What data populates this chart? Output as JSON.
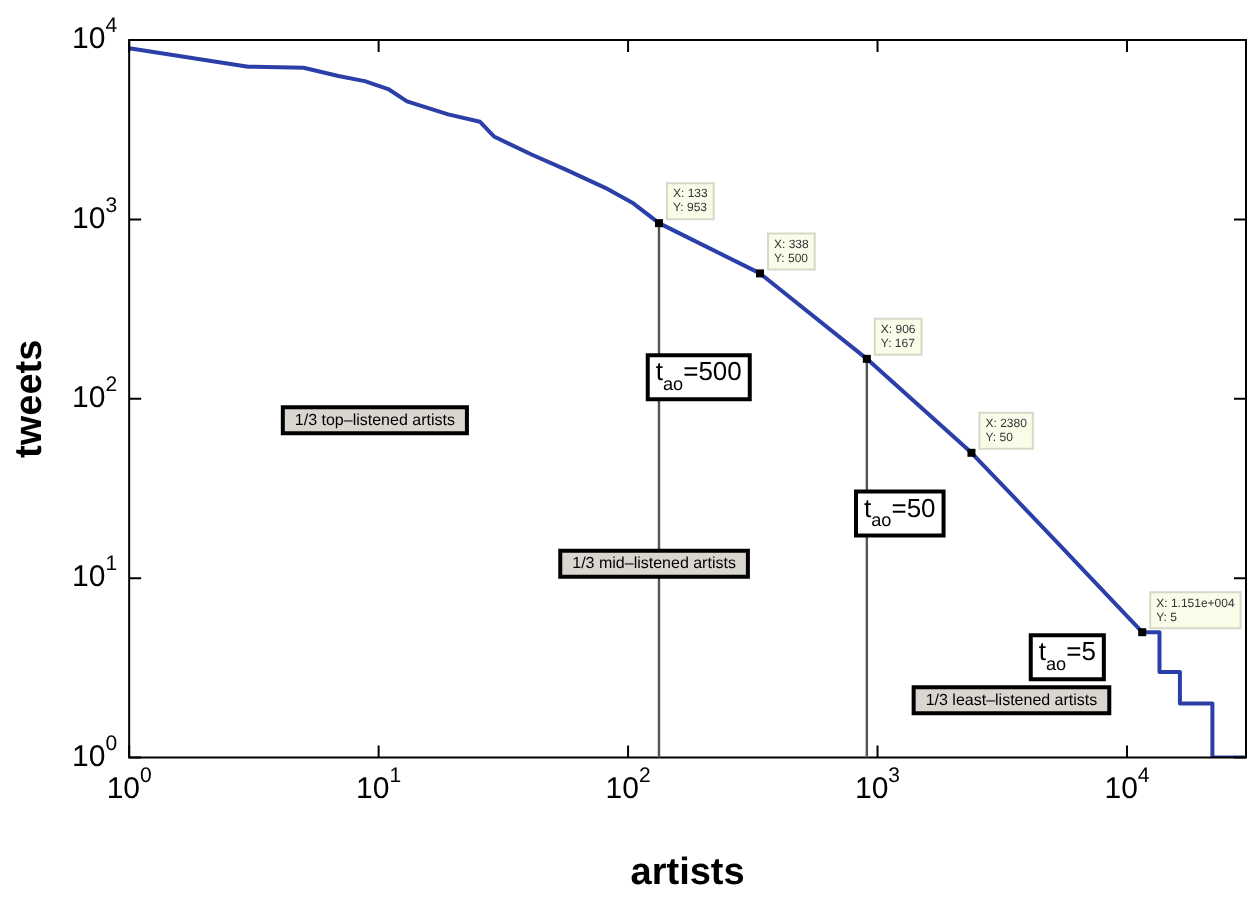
{
  "chart_data": {
    "type": "line",
    "xlabel": "artists",
    "ylabel": "tweets",
    "log": "xy",
    "grid": false,
    "legend": false,
    "marker": "none",
    "line_style": "solid",
    "xlim": [
      1,
      30000
    ],
    "ylim": [
      1,
      10000
    ],
    "xticks": [
      {
        "value": 1,
        "label": "10$^{0}$"
      },
      {
        "value": 10,
        "label": "10$^{1}$"
      },
      {
        "value": 100,
        "label": "10$^{2}$"
      },
      {
        "value": 1000,
        "label": "10$^{3}$"
      },
      {
        "value": 10000,
        "label": "10$^{4}$"
      }
    ],
    "yticks": [
      {
        "value": 1,
        "label": "10$^{0}$"
      },
      {
        "value": 10,
        "label": "10$^{1}$"
      },
      {
        "value": 100,
        "label": "10$^{2}$"
      },
      {
        "value": 1000,
        "label": "10$^{3}$"
      },
      {
        "value": 10000,
        "label": "10$^{4}$"
      }
    ],
    "series": [
      {
        "color": "#2b3fa8",
        "x": [
          1,
          3,
          5,
          6.9,
          8.8,
          11,
          13,
          19,
          25.5,
          29,
          41,
          56,
          81,
          104,
          133,
          338,
          906,
          2380,
          5000,
          11510,
          13500,
          13500,
          16300,
          16300,
          22000,
          22000,
          30000
        ],
        "values": [
          9000,
          7100,
          7000,
          6300,
          5900,
          5300,
          4550,
          3850,
          3500,
          2900,
          2300,
          1900,
          1500,
          1240,
          953,
          500,
          167,
          50,
          17,
          5,
          5,
          3,
          3,
          2,
          2,
          1,
          1
        ]
      }
    ],
    "ref_lines": [
      {
        "axis": "x",
        "value": 133,
        "color": "#555555"
      },
      {
        "axis": "x",
        "value": 906,
        "color": "#555555"
      }
    ],
    "annotations": [
      {
        "text": "X: 133\nY: 953",
        "x": 133,
        "y": 953
      },
      {
        "text": "X: 338\nY: 500",
        "x": 338,
        "y": 500
      },
      {
        "text": "X: 906\nY: 167",
        "x": 906,
        "y": 167
      },
      {
        "text": "X: 2380\nY: 50",
        "x": 2380,
        "y": 50
      },
      {
        "text": "X: 1.151e+004\nY: 5",
        "x": 11510,
        "y": 5
      },
      "t$_{ao}$=500",
      "t$_{ao}$=50",
      "t$_{ao}$=5",
      "1/3 top–listened artists",
      "1/3 mid–listened artists",
      "1/3 least–listened artists"
    ]
  }
}
